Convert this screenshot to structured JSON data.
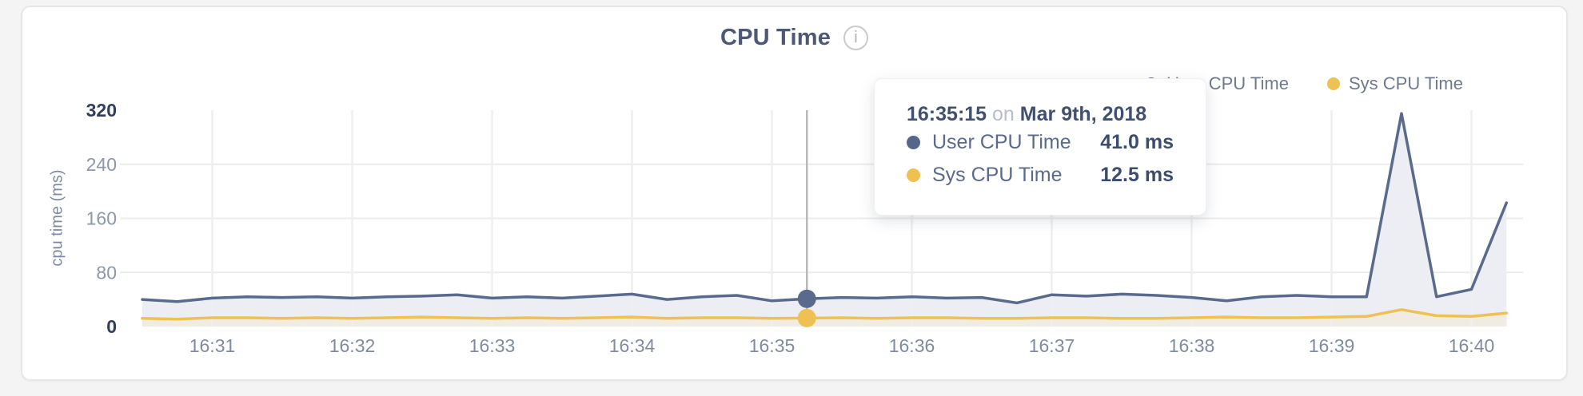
{
  "header": {
    "title": "CPU Time",
    "info_icon": "i"
  },
  "legend": {
    "items": [
      {
        "label": "User CPU Time",
        "color": "#5a6a8c"
      },
      {
        "label": "Sys CPU Time",
        "color": "#eec152"
      }
    ]
  },
  "tooltip": {
    "time": "16:35:15",
    "connector": "on",
    "date": "Mar 9th, 2018",
    "rows": [
      {
        "label": "User CPU Time",
        "value": "41.0 ms",
        "color": "#56668a"
      },
      {
        "label": "Sys CPU Time",
        "value": "12.5 ms",
        "color": "#eec152"
      }
    ]
  },
  "chart_data": {
    "type": "area",
    "title": "CPU Time",
    "xlabel": "",
    "ylabel": "cpu time (ms)",
    "ylim": [
      0,
      320
    ],
    "y_ticks": [
      320,
      240,
      160,
      80,
      0
    ],
    "x_ticks": [
      "16:31",
      "16:32",
      "16:33",
      "16:34",
      "16:35",
      "16:36",
      "16:37",
      "16:38",
      "16:39",
      "16:40"
    ],
    "grid": true,
    "legend_position": "top-right",
    "x": [
      "16:30:30",
      "16:30:45",
      "16:31:00",
      "16:31:15",
      "16:31:30",
      "16:31:45",
      "16:32:00",
      "16:32:15",
      "16:32:30",
      "16:32:45",
      "16:33:00",
      "16:33:15",
      "16:33:30",
      "16:33:45",
      "16:34:00",
      "16:34:15",
      "16:34:30",
      "16:34:45",
      "16:35:00",
      "16:35:15",
      "16:35:30",
      "16:35:45",
      "16:36:00",
      "16:36:15",
      "16:36:30",
      "16:36:45",
      "16:37:00",
      "16:37:15",
      "16:37:30",
      "16:37:45",
      "16:38:00",
      "16:38:15",
      "16:38:30",
      "16:38:45",
      "16:39:00",
      "16:39:15",
      "16:39:30",
      "16:39:45",
      "16:40:00",
      "16:40:15"
    ],
    "series": [
      {
        "name": "User CPU Time",
        "color": "#5a6a8c",
        "fill": "#eceef3",
        "values": [
          40,
          37,
          42,
          44,
          43,
          44,
          42,
          44,
          45,
          47,
          42,
          44,
          42,
          45,
          48,
          40,
          44,
          46,
          38,
          41,
          43,
          42,
          44,
          42,
          43,
          35,
          47,
          45,
          48,
          46,
          43,
          38,
          44,
          46,
          44,
          44,
          315,
          44,
          55,
          183
        ]
      },
      {
        "name": "Sys CPU Time",
        "color": "#eec152",
        "fill": "#f0ece1",
        "values": [
          12,
          11,
          13,
          13,
          12,
          13,
          12,
          13,
          14,
          13,
          12,
          13,
          12,
          13,
          14,
          12,
          13,
          13,
          12,
          12.5,
          13,
          12,
          13,
          13,
          12,
          12,
          13,
          13,
          12,
          12,
          13,
          14,
          13,
          13,
          14,
          15,
          25,
          16,
          15,
          20
        ]
      }
    ],
    "highlight_index": 19,
    "highlight": {
      "time": "16:35:15 on Mar 9th, 2018",
      "user_cpu_ms": 41.0,
      "sys_cpu_ms": 12.5
    }
  }
}
